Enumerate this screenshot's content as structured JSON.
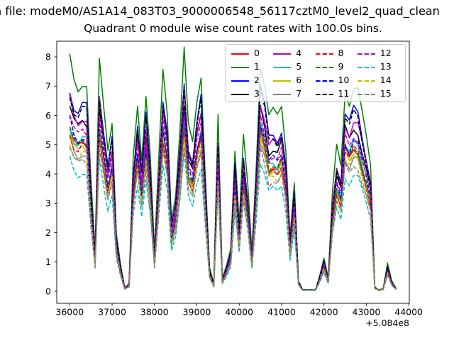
{
  "header": {
    "suptitle": "n file: modeM0/AS1A14_083T03_9000006548_56117cztM0_level2_quad_clean"
  },
  "chart_data": {
    "type": "line",
    "title": "Quadrant 0 module wise count rates with 100.0s bins.",
    "xlabel": "",
    "ylabel": "",
    "x_offset_text": "+5.084e8",
    "x_offset_value": 508400000,
    "bin_seconds": 100.0,
    "xticks": [
      36000,
      37000,
      38000,
      39000,
      40000,
      41000,
      42000,
      43000,
      44000
    ],
    "yticks": [
      0,
      1,
      2,
      3,
      4,
      5,
      6,
      7,
      8
    ],
    "xlim": [
      35694,
      44018
    ],
    "ylim": [
      -0.41,
      8.53
    ],
    "grid": false,
    "legend": {
      "position": "upper center-right",
      "columns": 4,
      "rows": 4
    },
    "x_start": 36000,
    "x_step": 100,
    "overlap_jitter": 0.03,
    "base_profile_note": "count-rate profile of module 1 (highest curve); each module = base * scale",
    "base_values": [
      7.9,
      7.2,
      6.95,
      7.2,
      7.1,
      3.8,
      1.35,
      7.75,
      6.3,
      4.9,
      5.9,
      2.0,
      0.9,
      0.12,
      0.25,
      4.6,
      6.45,
      4.6,
      6.75,
      4.6,
      1.35,
      4.4,
      7.55,
      6.2,
      2.5,
      3.3,
      5.4,
      8.1,
      5.6,
      5.1,
      6.6,
      7.5,
      4.0,
      0.8,
      0.25,
      5.9,
      0.45,
      0.9,
      1.5,
      4.85,
      2.3,
      5.2,
      3.6,
      1.35,
      4.3,
      7.85,
      7.1,
      5.95,
      6.1,
      5.9,
      6.3,
      4.9,
      1.9,
      3.75,
      0.35,
      0.05,
      0.05,
      0.05,
      0.05,
      0.55,
      1.15,
      0.45,
      3.3,
      4.9,
      4.3,
      6.9,
      6.5,
      7.0,
      6.85,
      6.0,
      5.2,
      4.3,
      0.15,
      0.04,
      0.1,
      0.95,
      0.35,
      0.1
    ],
    "series": [
      {
        "label": "0",
        "color": "#ff0000",
        "dashed": false,
        "scale": 0.7
      },
      {
        "label": "1",
        "color": "#008000",
        "dashed": false,
        "scale": 1.0
      },
      {
        "label": "2",
        "color": "#0000ff",
        "dashed": false,
        "scale": 0.88
      },
      {
        "label": "3",
        "color": "#000000",
        "dashed": false,
        "scale": 0.8
      },
      {
        "label": "4",
        "color": "#bf00bf",
        "dashed": false,
        "scale": 0.83
      },
      {
        "label": "5",
        "color": "#00bfbf",
        "dashed": false,
        "scale": 0.72
      },
      {
        "label": "6",
        "color": "#bfbf00",
        "dashed": false,
        "scale": 0.68
      },
      {
        "label": "7",
        "color": "#808080",
        "dashed": false,
        "scale": 0.66
      },
      {
        "label": "8",
        "color": "#ff0000",
        "dashed": true,
        "scale": 0.69
      },
      {
        "label": "9",
        "color": "#008000",
        "dashed": true,
        "scale": 0.71
      },
      {
        "label": "10",
        "color": "#0000ff",
        "dashed": true,
        "scale": 0.74
      },
      {
        "label": "11",
        "color": "#000000",
        "dashed": true,
        "scale": 0.86
      },
      {
        "label": "12",
        "color": "#bf00bf",
        "dashed": true,
        "scale": 0.76
      },
      {
        "label": "13",
        "color": "#00bfbf",
        "dashed": true,
        "scale": 0.57
      },
      {
        "label": "14",
        "color": "#bfbf00",
        "dashed": true,
        "scale": 0.65
      },
      {
        "label": "15",
        "color": "#808080",
        "dashed": true,
        "scale": 0.62
      }
    ]
  },
  "axes_style": {
    "spine_color": "#000000",
    "tick_color": "#000000",
    "background": "#ffffff"
  }
}
